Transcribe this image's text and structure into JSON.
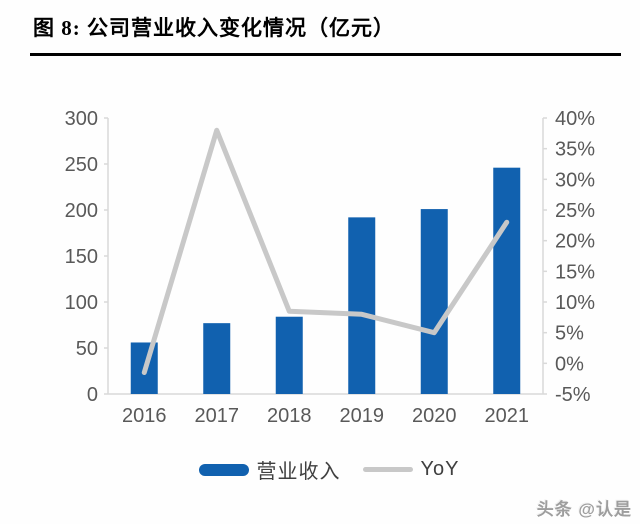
{
  "header": {
    "title": "图 8: 公司营业收入变化情况（亿元）"
  },
  "chart_data": {
    "type": "bar",
    "subtype": "bar-line-combo",
    "title": "公司营业收入变化情况（亿元）",
    "categories": [
      "2016",
      "2017",
      "2018",
      "2019",
      "2020",
      "2021"
    ],
    "series": [
      {
        "name": "营业收入",
        "type": "bar",
        "axis": "left",
        "color": "#1161AF",
        "values": [
          56,
          77,
          84,
          192,
          201,
          246
        ]
      },
      {
        "name": "YoY",
        "type": "line",
        "axis": "right",
        "color": "#C8C8C8",
        "values": [
          -1.5,
          38,
          8.5,
          8,
          5,
          23
        ]
      }
    ],
    "left_axis": {
      "min": 0,
      "max": 300,
      "step": 50,
      "tick_labels": [
        "0",
        "50",
        "100",
        "150",
        "200",
        "250",
        "300"
      ]
    },
    "right_axis": {
      "min": -5,
      "max": 40,
      "step": 5,
      "tick_labels": [
        "-5%",
        "0%",
        "5%",
        "10%",
        "15%",
        "20%",
        "25%",
        "30%",
        "35%",
        "40%"
      ],
      "unit": "%"
    },
    "grid": false,
    "legend_position": "bottom"
  },
  "colors": {
    "bar": "#1161AF",
    "line": "#C8C8C8",
    "axis_text": "#595959",
    "axis_line": "#D9D9D9",
    "title_text": "#000000",
    "legend_text": "#404040"
  },
  "watermark": {
    "text": "头条 @认是"
  }
}
